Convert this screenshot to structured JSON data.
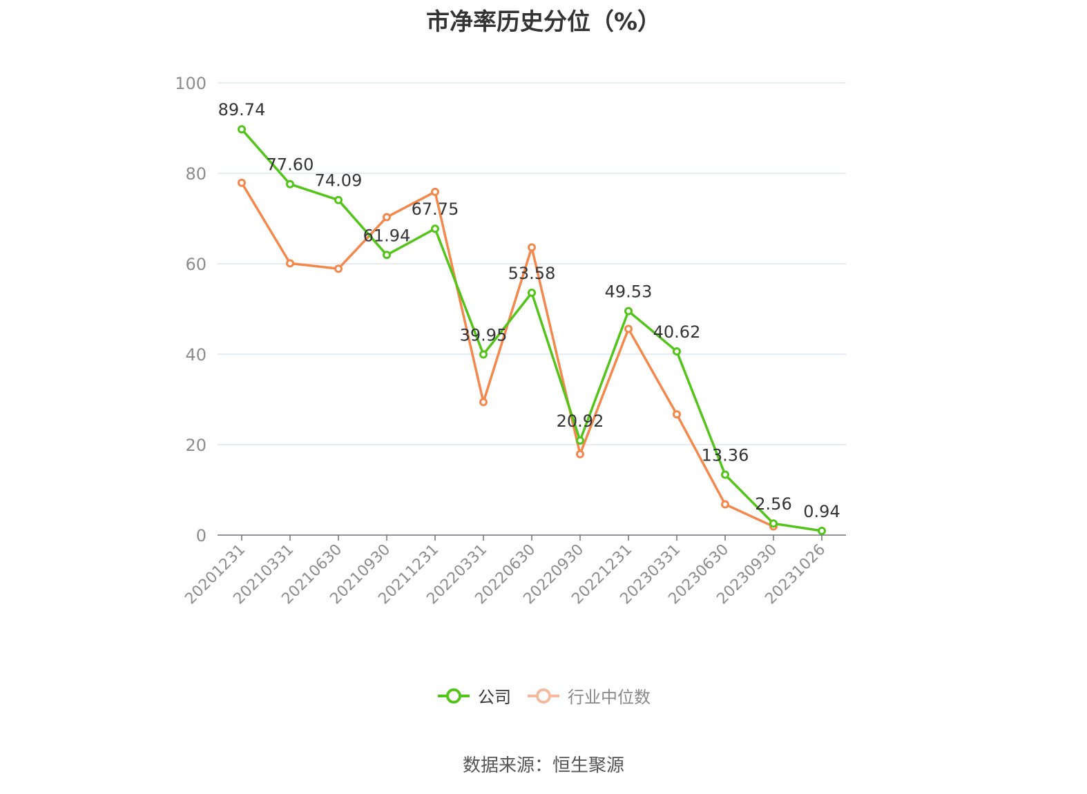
{
  "chart_data": {
    "type": "line",
    "title": "市净率历史分位（%）",
    "categories": [
      "20201231",
      "20210331",
      "20210630",
      "20210930",
      "20211231",
      "20220331",
      "20220630",
      "20220930",
      "20221231",
      "20230331",
      "20230630",
      "20230930",
      "20231026"
    ],
    "ylim": [
      0,
      100
    ],
    "yticks": [
      0,
      20,
      40,
      60,
      80,
      100
    ],
    "grid": true,
    "legend_position": "bottom-center",
    "series": [
      {
        "name": "公司",
        "color": "#52c41a",
        "show_labels": true,
        "values": [
          89.74,
          77.6,
          74.09,
          61.94,
          67.75,
          39.95,
          53.58,
          20.92,
          49.53,
          40.62,
          13.36,
          2.56,
          0.94
        ],
        "labels": [
          "89.74",
          "77.60",
          "74.09",
          "61.94",
          "67.75",
          "39.95",
          "53.58",
          "20.92",
          "49.53",
          "40.62",
          "13.36",
          "2.56",
          "0.94"
        ]
      },
      {
        "name": "行业中位数",
        "color": "#f4874b",
        "show_labels": false,
        "values": [
          77.9,
          60.1,
          58.9,
          70.3,
          75.9,
          29.4,
          63.6,
          17.9,
          45.6,
          26.7,
          6.8,
          1.9,
          null
        ]
      }
    ]
  },
  "legend": {
    "company": "公司",
    "industry": "行业中位数"
  },
  "source": "数据来源：恒生聚源"
}
